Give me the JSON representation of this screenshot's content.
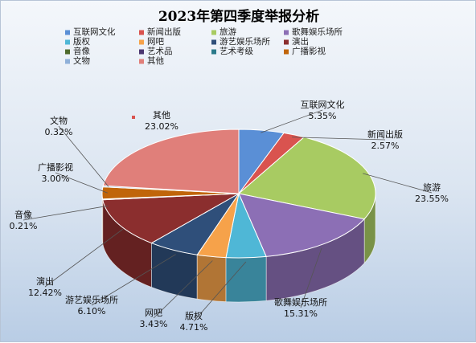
{
  "chart_data": {
    "type": "pie",
    "style": "3d",
    "title": "2023年第四季度举报分析",
    "legend_position": "top",
    "categories": [
      "互联网文化",
      "新闻出版",
      "旅游",
      "歌舞娱乐场所",
      "版权",
      "网吧",
      "游艺娱乐场所",
      "演出",
      "音像",
      "艺术品",
      "艺术考级",
      "广播影视",
      "文物",
      "其他"
    ],
    "values": [
      5.35,
      2.57,
      23.55,
      15.31,
      4.71,
      3.43,
      6.1,
      12.42,
      0.21,
      0.0,
      0.0,
      3.0,
      0.32,
      23.02
    ],
    "value_labels": [
      "5.35%",
      "2.57%",
      "23.55%",
      "15.31%",
      "4.71%",
      "3.43%",
      "6.10%",
      "12.42%",
      "0.21%",
      "",
      "",
      "3.00%",
      "0.32%",
      "23.02%"
    ],
    "colors": [
      "#5a8fd6",
      "#d9534f",
      "#a8cb62",
      "#8c6fb5",
      "#4fb7d6",
      "#f6a24a",
      "#2f4f7a",
      "#8b2e2e",
      "#4e6b2c",
      "#4b3670",
      "#2a7a8a",
      "#c0650a",
      "#8fb0d9",
      "#e07f7a"
    ]
  }
}
